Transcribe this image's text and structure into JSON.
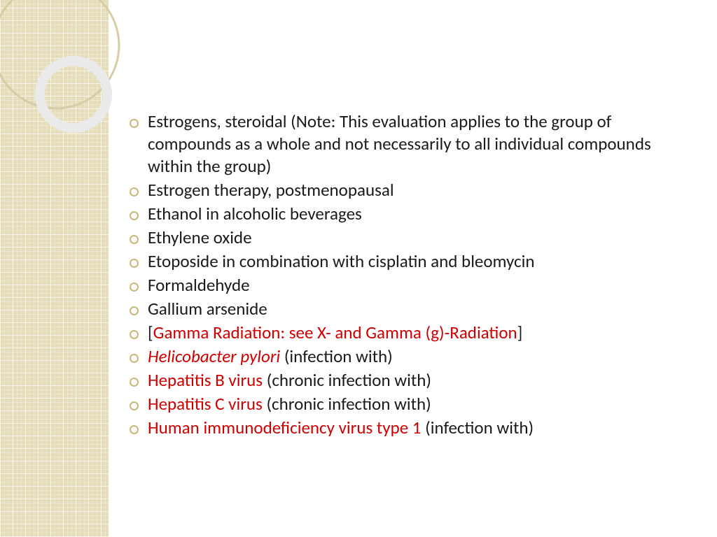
{
  "slide": {
    "bullets": [
      {
        "segments": [
          {
            "text": "Estrogens, steroidal (Note: This evaluation applies to the group of compounds as a whole and not necessarily to all individual compounds within the group)"
          }
        ]
      },
      {
        "segments": [
          {
            "text": "Estrogen therapy, postmenopausal"
          }
        ]
      },
      {
        "segments": [
          {
            "text": "Ethanol in alcoholic beverages"
          }
        ]
      },
      {
        "segments": [
          {
            "text": "Ethylene oxide"
          }
        ]
      },
      {
        "segments": [
          {
            "text": "Etoposide in combination with cisplatin and bleomycin"
          }
        ]
      },
      {
        "segments": [
          {
            "text": "Formaldehyde"
          }
        ]
      },
      {
        "segments": [
          {
            "text": "Gallium arsenide"
          }
        ]
      },
      {
        "segments": [
          {
            "text": "["
          },
          {
            "text": "Gamma Radiation: see X- and Gamma (g)-Radiation",
            "red": true
          },
          {
            "text": "]"
          }
        ]
      },
      {
        "segments": [
          {
            "text": "Helicobacter pylori",
            "red": true,
            "italic": true
          },
          {
            "text": " (infection with)"
          }
        ]
      },
      {
        "segments": [
          {
            "text": "Hepatitis B virus",
            "red": true
          },
          {
            "text": " (chronic infection with)"
          }
        ]
      },
      {
        "segments": [
          {
            "text": "Hepatitis C virus",
            "red": true
          },
          {
            "text": " (chronic infection with)"
          }
        ]
      },
      {
        "segments": [
          {
            "text": "Human immunodeficiency virus type 1",
            "red": true
          },
          {
            "text": " (infection with)"
          }
        ]
      }
    ]
  },
  "style": {
    "sidebar_color": "#e5dcb9",
    "bullet_ring_color": "#c8b979",
    "text_color": "#1a1a1a",
    "highlight_color": "#d10000",
    "background_color": "#ffffff",
    "font_size_pt": 19,
    "ring_stroke_outer": "#d6cda6",
    "ring_stroke_inner": "#e8e8e8"
  }
}
